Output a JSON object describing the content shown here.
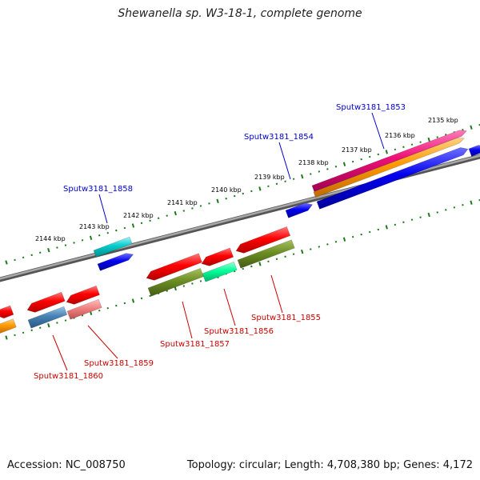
{
  "title": "Shewanella sp. W3-18-1, complete genome",
  "footer": {
    "accession": "Accession: NC_008750",
    "topology": "Topology: circular; Length: 4,708,380 bp; Genes: 4,172"
  },
  "ruler": [
    {
      "label": "2135 kbp"
    },
    {
      "label": "2136 kbp"
    },
    {
      "label": "2137 kbp"
    },
    {
      "label": "2138 kbp"
    },
    {
      "label": "2139 kbp"
    },
    {
      "label": "2140 kbp"
    },
    {
      "label": "2141 kbp"
    },
    {
      "label": "2142 kbp"
    },
    {
      "label": "2143 kbp"
    },
    {
      "label": "2144 kbp"
    }
  ],
  "genes_top": [
    {
      "label": "Sputw3181_1853"
    },
    {
      "label": "Sputw3181_1854"
    },
    {
      "label": "Sputw3181_1858"
    }
  ],
  "genes_bottom": [
    {
      "label": "Sputw3181_1855"
    },
    {
      "label": "Sputw3181_1856"
    },
    {
      "label": "Sputw3181_1857"
    },
    {
      "label": "Sputw3181_1859"
    },
    {
      "label": "Sputw3181_1860"
    }
  ],
  "colors": {
    "top_label": "#0000cc",
    "bottom_label": "#cc0000",
    "tick": "#1a7a1a",
    "backbone": "#808080",
    "red": "#ff0000",
    "blue": "#0000ee",
    "cyan": "#00cccc",
    "orange": "#ff9900",
    "magenta": "#ee1177",
    "olive": "#6b8e23",
    "spring": "#00ff99",
    "steel": "#4682b4",
    "pink": "#f08080"
  }
}
